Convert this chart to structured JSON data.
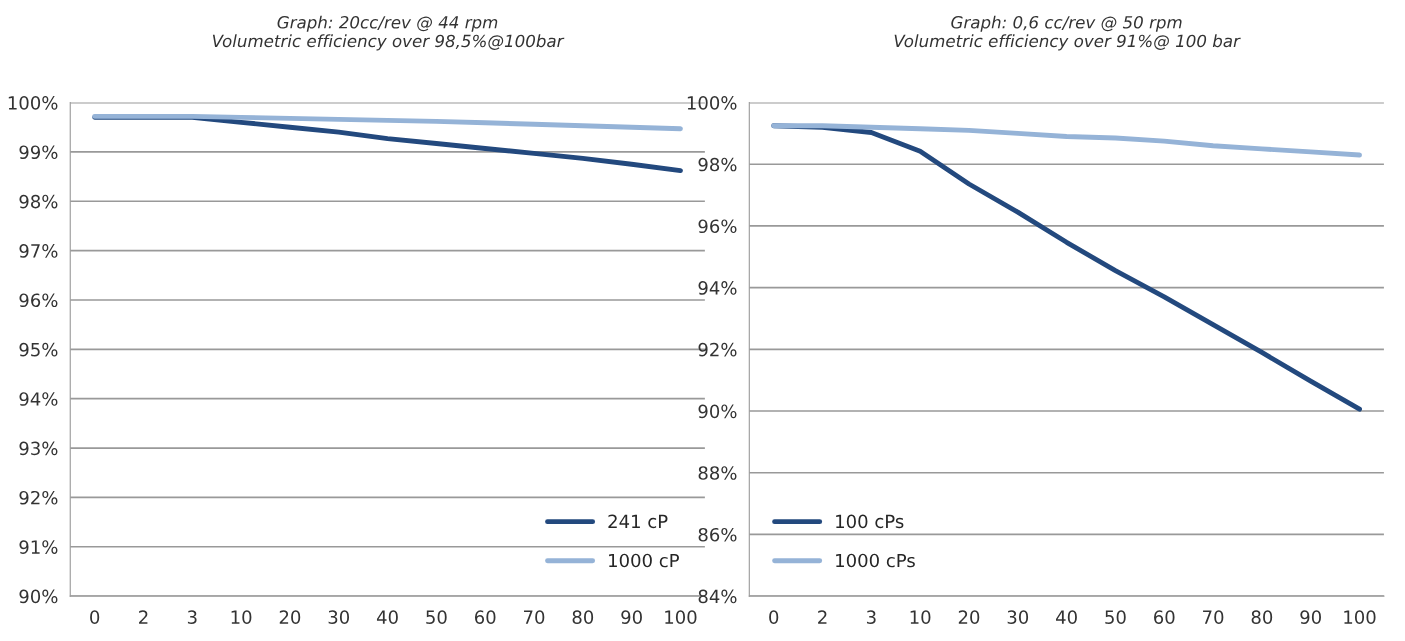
{
  "chart_data": [
    {
      "type": "line",
      "title": "Graph: 20cc/rev @ 44 rpm\nVolumetric efficiency over 98,5%@100bar",
      "categories": [
        "0",
        "2",
        "3",
        "10",
        "20",
        "30",
        "40",
        "50",
        "60",
        "70",
        "80",
        "90",
        "100"
      ],
      "series": [
        {
          "name": "241 cP",
          "color": "#23497e",
          "values": [
            99.7,
            99.7,
            99.7,
            99.6,
            99.5,
            99.4,
            99.27,
            99.17,
            99.07,
            98.97,
            98.87,
            98.75,
            98.62
          ]
        },
        {
          "name": "1000 cP",
          "color": "#95b3d7",
          "values": [
            99.72,
            99.72,
            99.72,
            99.7,
            99.68,
            99.66,
            99.64,
            99.62,
            99.59,
            99.56,
            99.53,
            99.5,
            99.47
          ]
        }
      ],
      "ylim": [
        90,
        100
      ],
      "yticks": [
        {
          "value": 90,
          "label": "90%"
        },
        {
          "value": 91,
          "label": "91%"
        },
        {
          "value": 92,
          "label": "92%"
        },
        {
          "value": 93,
          "label": "93%"
        },
        {
          "value": 94,
          "label": "94%"
        },
        {
          "value": 95,
          "label": "95%"
        },
        {
          "value": 96,
          "label": "96%"
        },
        {
          "value": 97,
          "label": "97%"
        },
        {
          "value": 98,
          "label": "98%"
        },
        {
          "value": 99,
          "label": "99%"
        },
        {
          "value": 100,
          "label": "100%"
        }
      ],
      "grid": "y",
      "legend": "bottom right"
    },
    {
      "type": "line",
      "title": "Graph: 0,6 cc/rev @ 50 rpm\nVolumetric efficiency over 91%@ 100 bar",
      "categories": [
        "0",
        "2",
        "3",
        "10",
        "20",
        "30",
        "40",
        "50",
        "60",
        "70",
        "80",
        "90",
        "100"
      ],
      "series": [
        {
          "name": "100 cPs",
          "color": "#23497e",
          "values": [
            99.25,
            99.2,
            99.03,
            98.42,
            97.36,
            96.45,
            95.47,
            94.55,
            93.7,
            92.8,
            91.9,
            90.97,
            90.06
          ]
        },
        {
          "name": "1000 cPs",
          "color": "#95b3d7",
          "values": [
            99.25,
            99.25,
            99.2,
            99.15,
            99.1,
            99.0,
            98.9,
            98.85,
            98.75,
            98.6,
            98.5,
            98.4,
            98.3
          ]
        }
      ],
      "ylim": [
        84,
        100
      ],
      "yticks": [
        {
          "value": 84,
          "label": "84%"
        },
        {
          "value": 86,
          "label": "86%"
        },
        {
          "value": 88,
          "label": "88%"
        },
        {
          "value": 90,
          "label": "90%"
        },
        {
          "value": 92,
          "label": "92%"
        },
        {
          "value": 94,
          "label": "94%"
        },
        {
          "value": 96,
          "label": "96%"
        },
        {
          "value": 98,
          "label": "98%"
        },
        {
          "value": 100,
          "label": "100%"
        }
      ],
      "grid": "y",
      "legend": "bottom left"
    }
  ]
}
